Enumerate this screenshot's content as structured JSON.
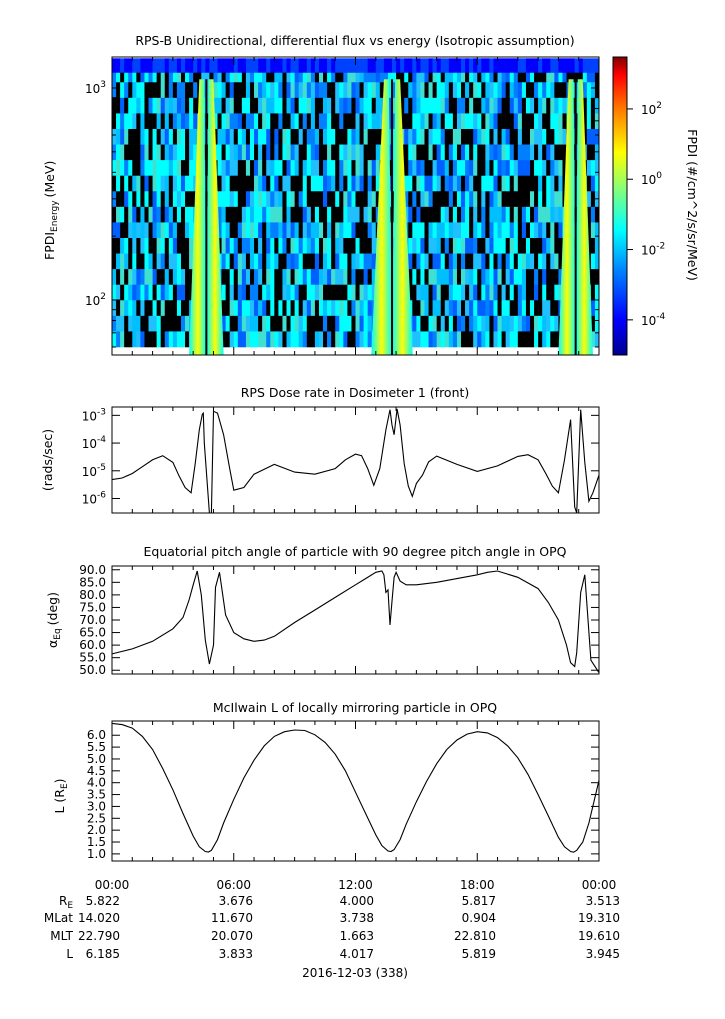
{
  "chart_data": [
    {
      "type": "heatmap",
      "title": "RPS-B  Unidirectional, differential flux vs energy (Isotropic assumption)",
      "ylabel_main": "FPDI",
      "ylabel_sub": "Energy",
      "ylabel_unit": "(MeV)",
      "yscale": "log",
      "ylim": [
        55,
        1400
      ],
      "y_ticks": [
        {
          "value": 100,
          "base": "10",
          "exp": "2"
        },
        {
          "value": 1000,
          "base": "10",
          "exp": "3"
        }
      ],
      "xlim_hours": [
        0,
        24
      ],
      "colorbar": {
        "label": "FPDI (#/cm^2/s/sr/MeV)",
        "scale": "log",
        "range": [
          1e-05,
          3000
        ],
        "ticks": [
          {
            "value": 0.0001,
            "base": "10",
            "exp": "-4"
          },
          {
            "value": 0.01,
            "base": "10",
            "exp": "-2"
          },
          {
            "value": 1,
            "base": "10",
            "exp": "0"
          },
          {
            "value": 100,
            "base": "10",
            "exp": "2"
          }
        ],
        "colormap": [
          "#00008f",
          "#0000ff",
          "#007fff",
          "#00ffff",
          "#7fff7f",
          "#ffff00",
          "#ff7f00",
          "#ff0000",
          "#7f0000"
        ]
      },
      "belt_crossings_hours": [
        4.4,
        4.9,
        13.5,
        14.1,
        22.6,
        23.1
      ],
      "top_channel_level": "1e-4"
    },
    {
      "type": "line",
      "title": "RPS  Dose rate in Dosimeter 1 (front)",
      "ylabel": "(rads/sec)",
      "yscale": "log",
      "ylim": [
        3e-07,
        0.002
      ],
      "y_ticks": [
        {
          "value": 1e-06,
          "base": "10",
          "exp": "-6"
        },
        {
          "value": 1e-05,
          "base": "10",
          "exp": "-5"
        },
        {
          "value": 0.0001,
          "base": "10",
          "exp": "-4"
        },
        {
          "value": 0.001,
          "base": "10",
          "exp": "-3"
        }
      ],
      "x_hours": [
        0,
        0.5,
        1,
        1.5,
        2,
        2.5,
        3,
        3.3,
        3.6,
        3.9,
        4.1,
        4.3,
        4.45,
        4.5,
        4.55,
        4.8,
        4.9,
        5,
        5.2,
        5.5,
        5.8,
        6,
        6.5,
        7,
        8,
        9,
        10,
        11,
        11.5,
        12,
        12.3,
        12.6,
        12.9,
        13.2,
        13.5,
        13.7,
        13.8,
        13.9,
        14.05,
        14.2,
        14.4,
        14.6,
        14.8,
        15,
        15.3,
        15.6,
        16,
        17,
        18,
        19,
        20,
        20.5,
        21,
        21.4,
        21.7,
        22,
        22.3,
        22.6,
        22.8,
        22.9,
        23.1,
        23.3,
        23.5,
        23.7,
        24
      ],
      "values": [
        4.8e-06,
        5.5e-06,
        8e-06,
        1.4e-05,
        2.5e-05,
        3.5e-05,
        2e-05,
        6.6e-06,
        2.5e-06,
        1.6e-06,
        1.8e-05,
        0.0003,
        0.0011,
        0.0012,
        0.0001,
        3e-07,
        3e-07,
        0.0014,
        0.0012,
        0.0002,
        1.2e-05,
        2e-06,
        2.5e-06,
        7.5e-06,
        1.7e-05,
        9e-06,
        7.5e-06,
        1.2e-05,
        2.5e-05,
        4e-05,
        3.5e-05,
        1.2e-05,
        3e-06,
        1.2e-05,
        0.0003,
        0.0016,
        0.00045,
        0.0002,
        0.0017,
        0.00045,
        1.8e-05,
        2.8e-06,
        1.2e-06,
        3.5e-06,
        7e-06,
        2.1e-05,
        3.4e-05,
        1.7e-05,
        9.5e-06,
        1.5e-05,
        3.3e-05,
        3.8e-05,
        2.5e-05,
        7.5e-06,
        2.8e-06,
        1.6e-06,
        2.5e-05,
        0.0007,
        5e-07,
        3e-07,
        0.0016,
        2e-05,
        8e-07,
        1.6e-06,
        7e-06
      ]
    },
    {
      "type": "line",
      "title": "Equatorial pitch angle of particle with 90 degree pitch angle in OPQ",
      "ylabel_main": "α",
      "ylabel_sub": "Eq",
      "ylabel_unit": "(deg)",
      "ylim": [
        48.5,
        91.5
      ],
      "y_ticks": [
        50,
        55,
        60,
        65,
        70,
        75,
        80,
        85,
        90
      ],
      "x_hours": [
        0,
        1,
        2,
        3,
        3.5,
        3.8,
        4,
        4.2,
        4.4,
        4.6,
        4.8,
        5,
        5.1,
        5.3,
        5.6,
        6,
        6.5,
        7,
        7.5,
        8,
        9,
        10,
        11,
        12,
        12.5,
        13,
        13.3,
        13.4,
        13.5,
        13.6,
        13.7,
        13.8,
        13.9,
        14,
        14.2,
        14.5,
        15,
        16,
        17,
        18,
        18.5,
        19,
        20,
        21,
        21.5,
        22,
        22.4,
        22.6,
        22.8,
        22.9,
        23.1,
        23.3,
        23.6,
        24
      ],
      "values": [
        56.5,
        58.5,
        61.5,
        66.5,
        71,
        78,
        84,
        89.5,
        80,
        62,
        52.5,
        60,
        83,
        89,
        72,
        65,
        62.5,
        61.5,
        62,
        63.5,
        69,
        74,
        79,
        84,
        86.5,
        89,
        89.5,
        88,
        81,
        82,
        68,
        77.5,
        87,
        89,
        85.5,
        84,
        84,
        85,
        86.5,
        88,
        89,
        89.5,
        87,
        82.5,
        77,
        70,
        60,
        53,
        51.5,
        57,
        81,
        88,
        54,
        49
      ]
    },
    {
      "type": "line",
      "title": "McIlwain L of locally mirroring particle in OPQ",
      "ylabel_main": "L (R",
      "ylabel_sub": "E",
      "ylabel_unit": ")",
      "ylim": [
        0.7,
        6.6
      ],
      "y_ticks": [
        1,
        1.5,
        2,
        2.5,
        3,
        3.5,
        4,
        4.5,
        5,
        5.5,
        6
      ],
      "x_hours": [
        0,
        0.5,
        1,
        1.5,
        2,
        2.5,
        3,
        3.5,
        4,
        4.3,
        4.6,
        4.75,
        4.9,
        5.2,
        5.5,
        6,
        6.5,
        7,
        7.5,
        8,
        8.5,
        9,
        9.5,
        10,
        10.5,
        11,
        11.5,
        12,
        12.5,
        13,
        13.3,
        13.6,
        13.75,
        13.9,
        14.2,
        14.5,
        15,
        15.5,
        16,
        16.5,
        17,
        17.5,
        18,
        18.5,
        19,
        19.5,
        20,
        20.5,
        21,
        21.5,
        22,
        22.3,
        22.6,
        22.75,
        22.9,
        23.2,
        23.5,
        24
      ],
      "values": [
        6.5,
        6.45,
        6.3,
        5.95,
        5.4,
        4.6,
        3.7,
        2.7,
        1.75,
        1.3,
        1.1,
        1.08,
        1.15,
        1.6,
        2.3,
        3.3,
        4.2,
        4.95,
        5.55,
        5.95,
        6.15,
        6.22,
        6.2,
        6.02,
        5.7,
        5.2,
        4.5,
        3.6,
        2.7,
        1.8,
        1.35,
        1.12,
        1.1,
        1.18,
        1.6,
        2.25,
        3.2,
        4.05,
        4.8,
        5.4,
        5.8,
        6.05,
        6.15,
        6.1,
        5.9,
        5.55,
        5.05,
        4.35,
        3.5,
        2.6,
        1.7,
        1.3,
        1.1,
        1.07,
        1.15,
        1.5,
        2.3,
        4.1
      ]
    }
  ],
  "x_axis": {
    "tick_labels": [
      "00:00",
      "06:00",
      "12:00",
      "18:00",
      "00:00"
    ],
    "row_labels": {
      "re": "R",
      "re_sub": "E",
      "mlat": "MLat",
      "mlt": "MLT",
      "l": "L"
    },
    "re_values": [
      "5.822",
      "3.676",
      "4.000",
      "5.817",
      "3.513"
    ],
    "mlat_values": [
      "14.020",
      "11.670",
      "3.738",
      "0.904",
      "19.310"
    ],
    "mlt_values": [
      "22.790",
      "20.070",
      "1.663",
      "22.810",
      "19.610"
    ],
    "l_values": [
      "6.185",
      "3.833",
      "4.017",
      "5.819",
      "3.945"
    ],
    "date_label": "2016-12-03 (338)"
  }
}
